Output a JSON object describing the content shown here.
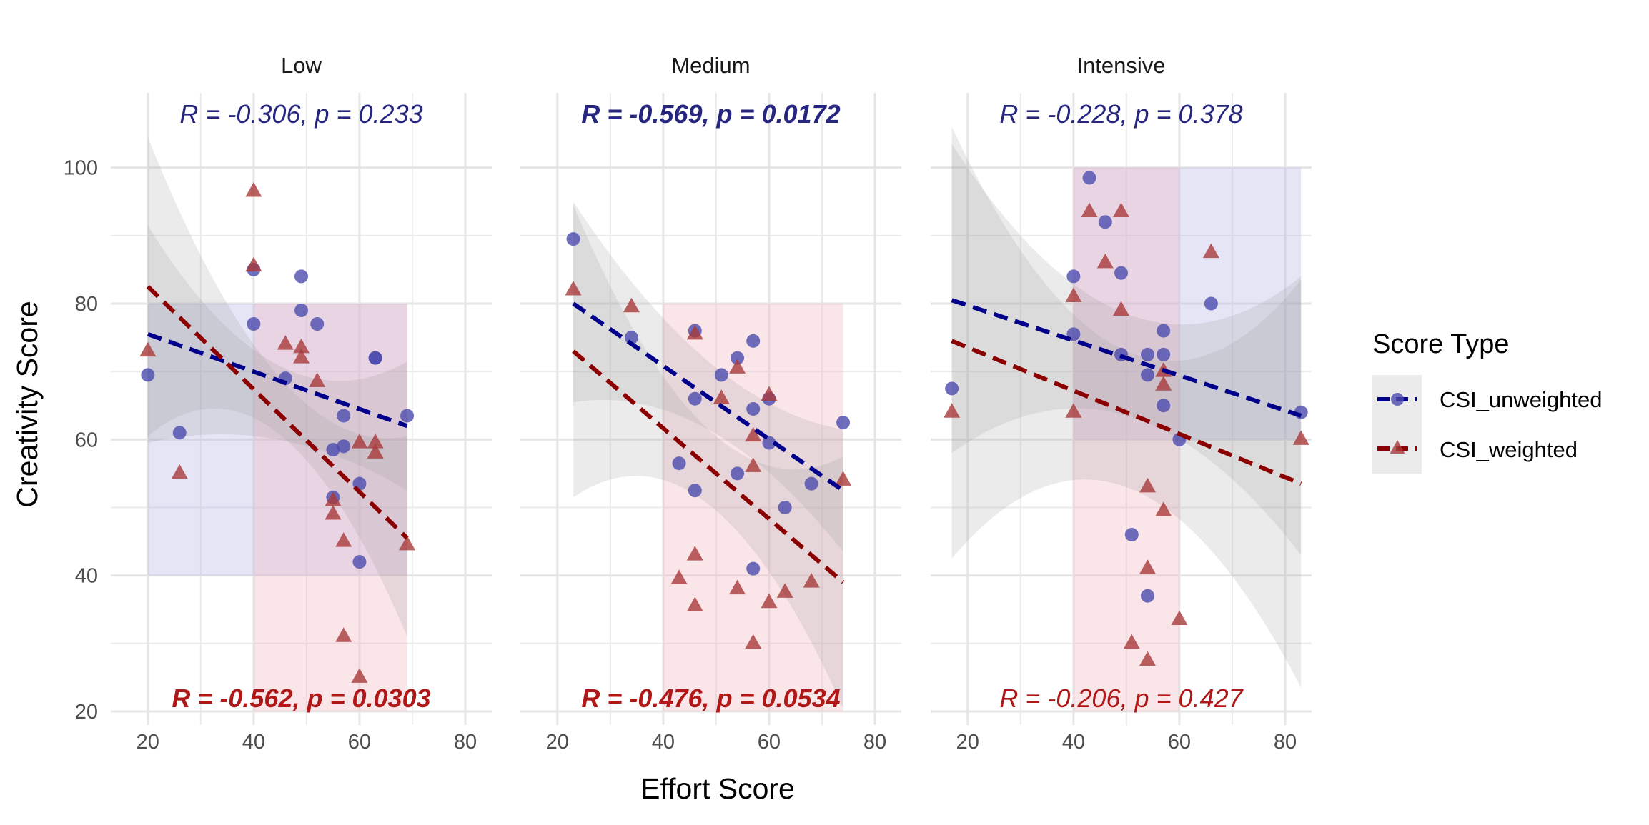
{
  "chart_data": {
    "type": "scatter",
    "xlabel": "Effort Score",
    "ylabel": "Creativity Score",
    "xlim": [
      13,
      85
    ],
    "ylim": [
      18,
      111
    ],
    "x_ticks": [
      20,
      40,
      60,
      80
    ],
    "y_ticks": [
      20,
      40,
      60,
      80,
      100
    ],
    "x_tick_labels": [
      "20",
      "40",
      "60",
      "80"
    ],
    "y_tick_labels": [
      "20",
      "40",
      "60",
      "80",
      "100"
    ],
    "grid": true,
    "legend": {
      "title": "Score Type",
      "position": "right",
      "entries": [
        {
          "name": "CSI_unweighted",
          "color": "#00008B",
          "point_color": "#4B4BAE",
          "marker": "circle",
          "linestyle": "dashed"
        },
        {
          "name": "CSI_weighted",
          "color": "#8B0000",
          "point_color": "#A83A3A",
          "marker": "triangle",
          "linestyle": "dashed"
        }
      ]
    },
    "colors": {
      "unweighted_text": "#262680",
      "weighted_text": "#B01818",
      "ribbon": "#999999",
      "rect_unweighted": "#B4B4E6",
      "rect_weighted": "#F0B4C0"
    },
    "panels": [
      {
        "title": "Low",
        "rects": [
          {
            "series": "CSI_unweighted",
            "x": [
              20,
              69
            ],
            "y": [
              40,
              80
            ]
          },
          {
            "series": "CSI_weighted",
            "x": [
              40,
              69
            ],
            "y": [
              20,
              80
            ]
          }
        ],
        "stats": [
          {
            "series": "CSI_unweighted",
            "text": "R = -0.306, p = 0.233",
            "bold": false
          },
          {
            "series": "CSI_weighted",
            "text": "R = -0.562, p = 0.0303",
            "bold": true
          }
        ],
        "fits": [
          {
            "series": "CSI_unweighted",
            "x": [
              20,
              69
            ],
            "y": [
              75.5,
              62.0
            ],
            "band_upper": [
              91.5,
              71.0,
              71.5
            ],
            "band_lower": [
              59.5,
              60.0,
              52.5
            ]
          },
          {
            "series": "CSI_weighted",
            "x": [
              20,
              69
            ],
            "y": [
              82.5,
              45.5
            ],
            "band_upper": [
              104.5,
              69.5,
              60.5
            ],
            "band_lower": [
              60.5,
              61.0,
              31.0
            ]
          }
        ],
        "points": {
          "CSI_unweighted": [
            [
              20,
              69.5
            ],
            [
              26,
              61
            ],
            [
              40,
              85
            ],
            [
              40,
              77
            ],
            [
              46,
              69
            ],
            [
              49,
              84
            ],
            [
              49,
              79
            ],
            [
              52,
              77
            ],
            [
              55,
              58.5
            ],
            [
              55,
              51.5
            ],
            [
              57,
              63.5
            ],
            [
              57,
              59
            ],
            [
              60,
              53.5
            ],
            [
              60,
              42
            ],
            [
              63,
              72
            ],
            [
              63,
              72
            ],
            [
              69,
              63.5
            ]
          ],
          "CSI_weighted": [
            [
              20,
              73
            ],
            [
              26,
              55
            ],
            [
              40,
              96.5
            ],
            [
              40,
              85.5
            ],
            [
              46,
              74
            ],
            [
              49,
              73.5
            ],
            [
              49,
              72
            ],
            [
              52,
              68.5
            ],
            [
              55,
              51
            ],
            [
              55,
              49
            ],
            [
              57,
              45
            ],
            [
              57,
              31
            ],
            [
              60,
              59.5
            ],
            [
              60,
              25
            ],
            [
              63,
              59.5
            ],
            [
              63,
              58
            ],
            [
              69,
              44.5
            ]
          ]
        }
      },
      {
        "title": "Medium",
        "rects": [
          {
            "series": "CSI_weighted",
            "x": [
              40,
              74
            ],
            "y": [
              20,
              80
            ]
          }
        ],
        "stats": [
          {
            "series": "CSI_unweighted",
            "text": "R = -0.569, p = 0.0172",
            "bold": true
          },
          {
            "series": "CSI_weighted",
            "text": "R = -0.476, p = 0.0534",
            "bold": true
          }
        ],
        "fits": [
          {
            "series": "CSI_unweighted",
            "x": [
              23,
              74
            ],
            "y": [
              80,
              52.5
            ],
            "band_upper": [
              95,
              71.5,
              61.5
            ],
            "band_lower": [
              65.5,
              61.5,
              43.5
            ]
          },
          {
            "series": "CSI_weighted",
            "x": [
              23,
              74
            ],
            "y": [
              73,
              39
            ],
            "band_upper": [
              94.5,
              61.5,
              57.5
            ],
            "band_lower": [
              51.5,
              50.5,
              20.5
            ]
          }
        ],
        "points": {
          "CSI_unweighted": [
            [
              23,
              89.5
            ],
            [
              34,
              75
            ],
            [
              43,
              56.5
            ],
            [
              46,
              76
            ],
            [
              46,
              66
            ],
            [
              46,
              52.5
            ],
            [
              51,
              69.5
            ],
            [
              54,
              72
            ],
            [
              54,
              55
            ],
            [
              57,
              74.5
            ],
            [
              57,
              64.5
            ],
            [
              57,
              41
            ],
            [
              60,
              66
            ],
            [
              60,
              59.5
            ],
            [
              63,
              50
            ],
            [
              68,
              53.5
            ],
            [
              74,
              62.5
            ]
          ],
          "CSI_weighted": [
            [
              23,
              82
            ],
            [
              34,
              79.5
            ],
            [
              43,
              39.5
            ],
            [
              46,
              75.5
            ],
            [
              46,
              43
            ],
            [
              46,
              35.5
            ],
            [
              51,
              66
            ],
            [
              54,
              70.5
            ],
            [
              54,
              38
            ],
            [
              57,
              60.5
            ],
            [
              57,
              56
            ],
            [
              57,
              30
            ],
            [
              60,
              66.5
            ],
            [
              60,
              36
            ],
            [
              63,
              37.5
            ],
            [
              68,
              39
            ],
            [
              74,
              54
            ]
          ]
        }
      },
      {
        "title": "Intensive",
        "rects": [
          {
            "series": "CSI_unweighted",
            "x": [
              40,
              83
            ],
            "y": [
              60,
              100
            ]
          },
          {
            "series": "CSI_weighted",
            "x": [
              40,
              60
            ],
            "y": [
              20,
              100
            ]
          }
        ],
        "stats": [
          {
            "series": "CSI_unweighted",
            "text": "R = -0.228, p = 0.378",
            "bold": false
          },
          {
            "series": "CSI_weighted",
            "text": "R = -0.206, p = 0.427",
            "bold": false
          }
        ],
        "fits": [
          {
            "series": "CSI_unweighted",
            "x": [
              17,
              83
            ],
            "y": [
              80.5,
              63.5
            ],
            "band_upper": [
              103.5,
              78.5,
              84
            ],
            "band_lower": [
              58,
              63.5,
              43
            ]
          },
          {
            "series": "CSI_weighted",
            "x": [
              17,
              83
            ],
            "y": [
              74.5,
              53.5
            ],
            "band_upper": [
              106,
              73,
              83.5
            ],
            "band_lower": [
              42.5,
              53,
              23.5
            ]
          }
        ],
        "points": {
          "CSI_unweighted": [
            [
              17,
              67.5
            ],
            [
              40,
              84
            ],
            [
              40,
              75.5
            ],
            [
              43,
              98.5
            ],
            [
              46,
              92
            ],
            [
              49,
              84.5
            ],
            [
              49,
              72.5
            ],
            [
              51,
              46
            ],
            [
              54,
              72.5
            ],
            [
              54,
              69.5
            ],
            [
              54,
              37
            ],
            [
              57,
              76
            ],
            [
              57,
              72.5
            ],
            [
              57,
              65
            ],
            [
              60,
              60
            ],
            [
              66,
              80
            ],
            [
              83,
              64
            ]
          ],
          "CSI_weighted": [
            [
              17,
              64
            ],
            [
              40,
              81
            ],
            [
              40,
              64
            ],
            [
              43,
              93.5
            ],
            [
              46,
              86
            ],
            [
              49,
              93.5
            ],
            [
              49,
              79
            ],
            [
              51,
              30
            ],
            [
              54,
              53
            ],
            [
              54,
              41
            ],
            [
              54,
              27.5
            ],
            [
              57,
              70
            ],
            [
              57,
              68
            ],
            [
              57,
              49.5
            ],
            [
              60,
              33.5
            ],
            [
              66,
              87.5
            ],
            [
              83,
              60
            ]
          ]
        }
      }
    ]
  }
}
